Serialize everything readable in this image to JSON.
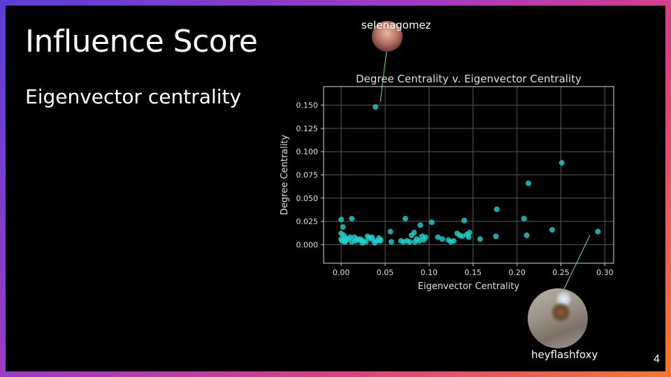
{
  "slide": {
    "title": "Influence Score",
    "subtitle": "Eigenvector centrality",
    "page_number": "4"
  },
  "annotations": {
    "top_user": "selenagomez",
    "bottom_user": "heyflashfoxy"
  },
  "chart_data": {
    "type": "scatter",
    "title": "Degree Centrality v. Eigenvector Centrality",
    "xlabel": "Eigenvector Centrality",
    "ylabel": "Degree Centrality",
    "xlim": [
      -0.02,
      0.31
    ],
    "ylim": [
      -0.02,
      0.17
    ],
    "xticks": [
      0.0,
      0.05,
      0.1,
      0.15,
      0.2,
      0.25,
      0.3
    ],
    "xtick_labels": [
      "0.00",
      "0.05",
      "0.10",
      "0.15",
      "0.20",
      "0.25",
      "0.30"
    ],
    "yticks": [
      0.0,
      0.025,
      0.05,
      0.075,
      0.1,
      0.125,
      0.15
    ],
    "ytick_labels": [
      "0.000",
      "0.025",
      "0.050",
      "0.075",
      "0.100",
      "0.125",
      "0.150"
    ],
    "grid": true,
    "point_color": "#1fd6d0",
    "series": [
      {
        "x": [
          0.039,
          0.251,
          0.213,
          0.177,
          0.0,
          0.012,
          0.073,
          0.103,
          0.14,
          0.208,
          0.24,
          0.292,
          0.002,
          0.01,
          0.005,
          0.0,
          0.0,
          0.003,
          0.008,
          0.015,
          0.02,
          0.025,
          0.03,
          0.035,
          0.04,
          0.045,
          0.004,
          0.012,
          0.018,
          0.028,
          0.032,
          0.038,
          0.044,
          0.056,
          0.068,
          0.075,
          0.08,
          0.083,
          0.086,
          0.089,
          0.092,
          0.096,
          0.11,
          0.115,
          0.122,
          0.128,
          0.132,
          0.135,
          0.138,
          0.143,
          0.146,
          0.158,
          0.176,
          0.211,
          0.09,
          0.057,
          0.005,
          0.022,
          0.043,
          0.071,
          0.084,
          0.001,
          0.016,
          0.035,
          0.078,
          0.094,
          0.125,
          0.145,
          0.024
        ],
        "y": [
          0.148,
          0.088,
          0.066,
          0.038,
          0.027,
          0.028,
          0.028,
          0.024,
          0.026,
          0.028,
          0.016,
          0.014,
          0.019,
          0.008,
          0.004,
          0.012,
          0.006,
          0.01,
          0.006,
          0.008,
          0.005,
          0.004,
          0.009,
          0.006,
          0.004,
          0.005,
          0.003,
          0.003,
          0.006,
          0.003,
          0.007,
          0.002,
          0.004,
          0.014,
          0.004,
          0.004,
          0.01,
          0.013,
          0.006,
          0.004,
          0.009,
          0.008,
          0.008,
          0.006,
          0.005,
          0.004,
          0.012,
          0.01,
          0.009,
          0.011,
          0.013,
          0.006,
          0.009,
          0.01,
          0.021,
          0.003,
          0.007,
          0.006,
          0.007,
          0.003,
          0.003,
          0.004,
          0.004,
          0.008,
          0.003,
          0.005,
          0.003,
          0.008,
          0.002
        ]
      }
    ]
  }
}
